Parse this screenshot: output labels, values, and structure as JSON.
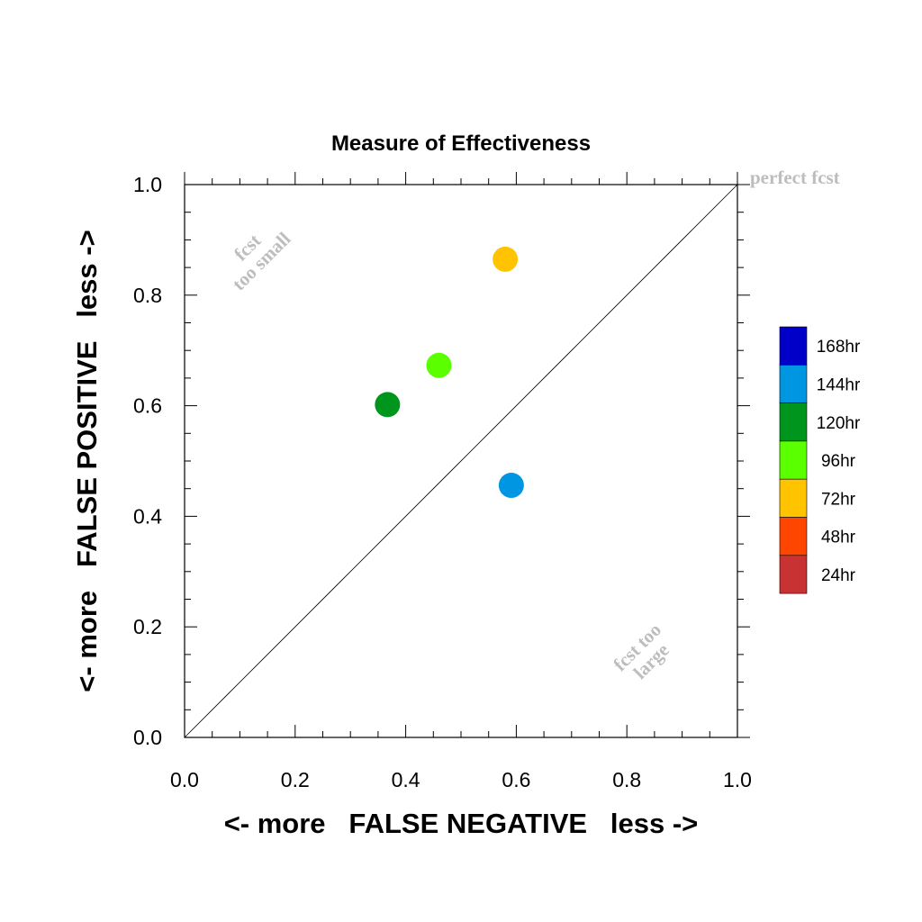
{
  "chart_data": {
    "type": "scatter",
    "title": "Measure of Effectiveness",
    "xlabel": "<- more   FALSE NEGATIVE   less ->",
    "ylabel": "<- more   FALSE POSITIVE   less ->",
    "xlim": [
      0,
      1
    ],
    "ylim": [
      0,
      1
    ],
    "x_ticks": [
      "0.0",
      "0.2",
      "0.4",
      "0.6",
      "0.8",
      "1.0"
    ],
    "y_ticks": [
      "0.0",
      "0.2",
      "0.4",
      "0.6",
      "0.8",
      "1.0"
    ],
    "grid": false,
    "diagonal_line": true,
    "legend_position": "right",
    "annotations": {
      "perfect": "perfect fcst",
      "too_small": [
        "fcst",
        "too small"
      ],
      "too_large": [
        "fcst too",
        "large"
      ]
    },
    "legend": [
      {
        "label": "168hr",
        "color": "#0000c8"
      },
      {
        "label": "144hr",
        "color": "#0096e1"
      },
      {
        "label": "120hr",
        "color": "#00961e"
      },
      {
        "label": "96hr",
        "color": "#5aff00"
      },
      {
        "label": "72hr",
        "color": "#ffc300"
      },
      {
        "label": "48hr",
        "color": "#ff4600"
      },
      {
        "label": "24hr",
        "color": "#c83232"
      }
    ],
    "points": [
      {
        "series": "72hr",
        "x": 0.58,
        "y": 0.865,
        "color": "#ffc300"
      },
      {
        "series": "96hr",
        "x": 0.46,
        "y": 0.673,
        "color": "#5aff00"
      },
      {
        "series": "120hr",
        "x": 0.367,
        "y": 0.602,
        "color": "#00961e"
      },
      {
        "series": "144hr",
        "x": 0.591,
        "y": 0.456,
        "color": "#0096e1"
      }
    ]
  }
}
